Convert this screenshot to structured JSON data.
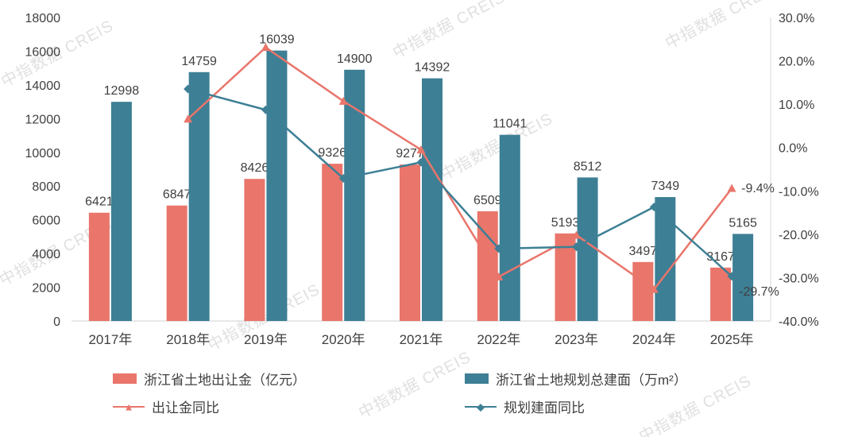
{
  "watermark_text": "中指数据 CREIS",
  "chart_data": {
    "type": "bar",
    "subtype": "combo-bar-line-dual-axis",
    "categories": [
      "2017年",
      "2018年",
      "2019年",
      "2020年",
      "2021年",
      "2022年",
      "2023年",
      "2024年",
      "2025年"
    ],
    "series": [
      {
        "name": "浙江省土地出让金（亿元）",
        "type": "bar",
        "axis": "left",
        "color": "#E9756B",
        "values": [
          6421,
          6847,
          8426,
          9326,
          9277,
          6509,
          5193,
          3497,
          3167
        ]
      },
      {
        "name": "浙江省土地规划总建面（万m²）",
        "type": "bar",
        "axis": "left",
        "color": "#3D7F95",
        "values": [
          12998,
          14759,
          16039,
          14900,
          14392,
          11041,
          8512,
          7349,
          5165
        ]
      },
      {
        "name": "出让金同比",
        "type": "line",
        "marker": "triangle",
        "axis": "right",
        "color": "#E9756B",
        "values": [
          null,
          6.6,
          23.1,
          10.7,
          -0.5,
          -29.8,
          -20.2,
          -32.7,
          -9.4
        ]
      },
      {
        "name": "规划建面同比",
        "type": "line",
        "marker": "diamond",
        "axis": "right",
        "color": "#3D7F95",
        "values": [
          null,
          13.5,
          8.7,
          -7.1,
          -3.4,
          -23.3,
          -22.9,
          -13.7,
          -29.7
        ]
      }
    ],
    "left_axis": {
      "min": 0,
      "max": 18000,
      "step": 2000,
      "labels": [
        "0",
        "2000",
        "4000",
        "6000",
        "8000",
        "10000",
        "12000",
        "14000",
        "16000",
        "18000"
      ]
    },
    "right_axis": {
      "min": -40,
      "max": 30,
      "step": 10,
      "labels": [
        "-40.0%",
        "-30.0%",
        "-20.0%",
        "-10.0%",
        "0.0%",
        "10.0%",
        "20.0%",
        "30.0%"
      ]
    },
    "annotations": [
      {
        "text": "-9.4%",
        "series": 2,
        "point": 8
      },
      {
        "text": "-29.7%",
        "series": 3,
        "point": 8
      }
    ],
    "grid": false,
    "legend_position": "bottom"
  },
  "legend": {
    "items": [
      {
        "label": "浙江省土地出让金（亿元）",
        "swatch": "bar",
        "color": "#E9756B"
      },
      {
        "label": "浙江省土地规划总建面（万m²）",
        "swatch": "bar",
        "color": "#3D7F95"
      },
      {
        "label": "出让金同比",
        "swatch": "line-triangle",
        "color": "#E9756B"
      },
      {
        "label": "规划建面同比",
        "swatch": "line-diamond",
        "color": "#3D7F95"
      }
    ]
  },
  "colors": {
    "bar_red": "#E9756B",
    "bar_teal": "#3D7F95",
    "axis_text": "#404040",
    "axis_line": "#D9D9D9",
    "watermark": "#C8C8C8"
  }
}
